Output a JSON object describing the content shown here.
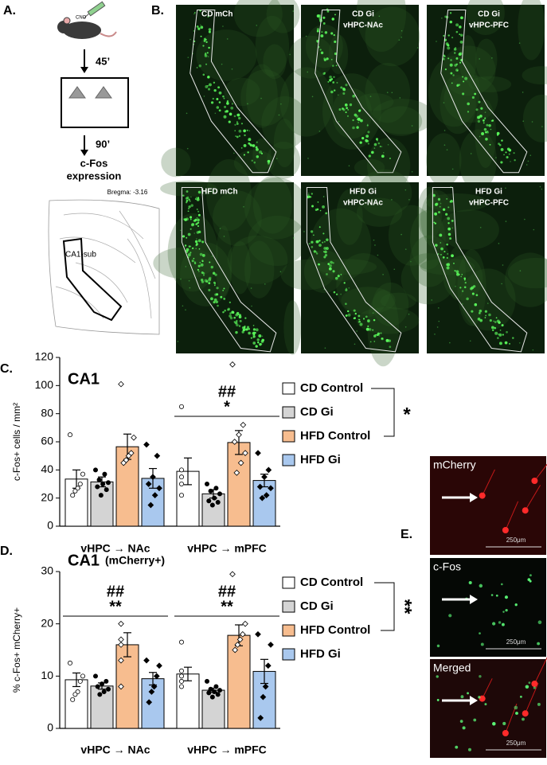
{
  "panel_a": {
    "label": "A.",
    "drug": "CNO",
    "delay_1": "45’",
    "delay_2": "90’",
    "outcome": [
      "c-Fos",
      "expression"
    ],
    "bregma": "Bregma: -3.16",
    "region": "CA1-sub"
  },
  "panel_b": {
    "label": "B.",
    "images": [
      [
        "CD mCh"
      ],
      [
        "CD Gi",
        "vHPC-NAc"
      ],
      [
        "CD Gi",
        "vHPC-PFC"
      ],
      [
        "HFD mCh"
      ],
      [
        "HFD Gi",
        "vHPC-NAc"
      ],
      [
        "HFD Gi",
        "vHPC-PFC"
      ]
    ]
  },
  "panel_e": {
    "label": "E.",
    "images": [
      {
        "label": "mCherry",
        "scale": "250μm"
      },
      {
        "label": "c-Fos",
        "scale": "250μm"
      },
      {
        "label": "Merged",
        "scale": "250μm"
      }
    ]
  },
  "chart_data": [
    {
      "type": "bar",
      "panel": "C.",
      "title": "CA1",
      "ylabel": "c-Fos+ cells / mm²",
      "categories": [
        "vHPC → NAc",
        "vHPC → mPFC"
      ],
      "ylim": [
        0,
        120
      ],
      "yticks": [
        0,
        20,
        40,
        60,
        80,
        100,
        120
      ],
      "series": [
        {
          "name": "CD Control",
          "color": "#ffffff",
          "marker": "open-circle",
          "values": [
            33.5,
            39
          ],
          "errors": [
            6.5,
            9.5
          ],
          "points": [
            [
              65,
              37,
              30,
              27,
              25,
              22
            ],
            [
              85,
              40,
              35,
              30,
              22
            ]
          ]
        },
        {
          "name": "CD Gi",
          "color": "#d4d4d4",
          "marker": "filled-circle",
          "values": [
            31.5,
            23
          ],
          "errors": [
            3.5,
            3
          ],
          "points": [
            [
              40,
              37,
              33,
              31,
              30,
              28,
              26,
              22
            ],
            [
              30,
              27,
              25,
              23,
              20,
              18,
              17,
              15
            ]
          ]
        },
        {
          "name": "HFD Control",
          "color": "#f7bd8f",
          "marker": "open-diamond",
          "values": [
            56.5,
            59.5
          ],
          "errors": [
            9,
            8.5
          ],
          "points": [
            [
              101,
              63,
              52,
              50,
              47,
              45
            ],
            [
              115,
              72,
              65,
              60,
              52,
              45,
              38
            ]
          ]
        },
        {
          "name": "HFD Gi",
          "color": "#a9c8ee",
          "marker": "filled-diamond",
          "values": [
            34,
            32.5
          ],
          "errors": [
            7,
            4.5
          ],
          "points": [
            [
              58,
              50,
              35,
              30,
              27,
              22,
              15
            ],
            [
              52,
              40,
              35,
              28,
              27,
              22,
              20
            ]
          ]
        }
      ],
      "annotations": [
        [
          "##",
          "*"
        ]
      ],
      "legend_annotation": "*"
    },
    {
      "type": "bar",
      "panel": "D.",
      "title": "CA1",
      "subtitle": "(mCherry+)",
      "ylabel": "% c-Fos+ mCherry+",
      "categories": [
        "vHPC → NAc",
        "vHPC → mPFC"
      ],
      "ylim": [
        0,
        30
      ],
      "yticks": [
        0,
        10,
        20,
        30
      ],
      "series": [
        {
          "name": "CD Control",
          "color": "#ffffff",
          "marker": "open-circle",
          "values": [
            9.3,
            10.4
          ],
          "errors": [
            1.3,
            1.3
          ],
          "points": [
            [
              12.5,
              10,
              9,
              7,
              6.5,
              5.5
            ],
            [
              16.5,
              11,
              10,
              9,
              8
            ]
          ]
        },
        {
          "name": "CD Gi",
          "color": "#d4d4d4",
          "marker": "filled-circle",
          "values": [
            8.1,
            7.3
          ],
          "errors": [
            0.6,
            0.4
          ],
          "points": [
            [
              10,
              9,
              8.5,
              8,
              7.5,
              7,
              6.5
            ],
            [
              9,
              8,
              7.5,
              7.3,
              7,
              6.8,
              6.5,
              6
            ]
          ]
        },
        {
          "name": "HFD Control",
          "color": "#f7bd8f",
          "marker": "open-diamond",
          "values": [
            16,
            17.8
          ],
          "errors": [
            2.3,
            2
          ],
          "points": [
            [
              20,
              17,
              16,
              13,
              8
            ],
            [
              29.5,
              20,
              18,
              17,
              16,
              15
            ]
          ]
        },
        {
          "name": "HFD Gi",
          "color": "#a9c8ee",
          "marker": "filled-diamond",
          "values": [
            9.5,
            10.9
          ],
          "errors": [
            1.2,
            2.3
          ],
          "points": [
            [
              13,
              12,
              10,
              8,
              7,
              5
            ],
            [
              18,
              16,
              12,
              8,
              6,
              2
            ]
          ]
        }
      ],
      "annotations": [
        [
          "##",
          "**"
        ],
        [
          "##",
          "**"
        ]
      ],
      "legend_annotation": "**"
    }
  ]
}
